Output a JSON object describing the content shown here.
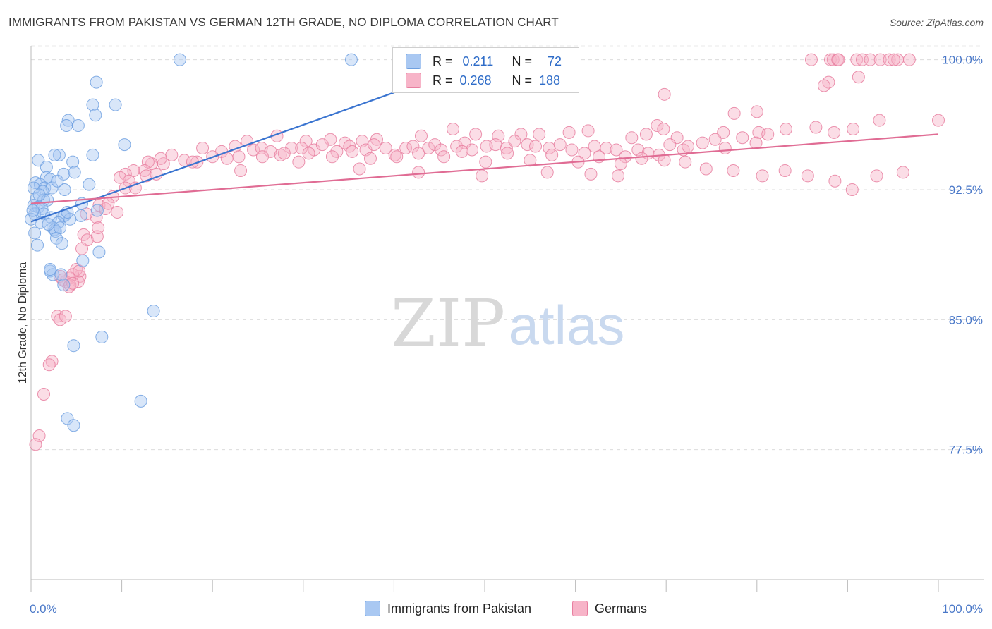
{
  "header": {
    "title": "IMMIGRANTS FROM PAKISTAN VS GERMAN 12TH GRADE, NO DIPLOMA CORRELATION CHART",
    "source": "Source: ZipAtlas.com"
  },
  "watermark": {
    "zip": "ZIP",
    "atlas": "atlas"
  },
  "legend": {
    "rows": [
      {
        "r_label": "R =",
        "r_value": "0.211",
        "n_label": "N =",
        "n_value": "72",
        "color": "#a9c8f2"
      },
      {
        "r_label": "R =",
        "r_value": "0.268",
        "n_label": "N =",
        "n_value": "188",
        "color": "#f7b4c8"
      }
    ]
  },
  "bottom_legend": [
    "Immigrants from Pakistan",
    "Germans"
  ],
  "chart_data": {
    "type": "scatter",
    "title": "IMMIGRANTS FROM PAKISTAN VS GERMAN 12TH GRADE, NO DIPLOMA CORRELATION CHART",
    "xlabel": "",
    "ylabel": "12th Grade, No Diploma",
    "xlim": [
      0,
      100
    ],
    "ylim": [
      70,
      100.8
    ],
    "x_tick_labels": [
      "0.0%",
      "100.0%"
    ],
    "y_ticks": [
      77.5,
      85.0,
      92.5,
      100.0
    ],
    "y_tick_labels": [
      "77.5%",
      "85.0%",
      "92.5%",
      "100.0%"
    ],
    "grid": true,
    "legend_position": "top-center",
    "series": [
      {
        "name": "Immigrants from Pakistan",
        "color": "#6fa0e0",
        "fill": "#a9c8f2",
        "trend": {
          "x": [
            0,
            40.5
          ],
          "y": [
            90.65,
            98.2
          ]
        },
        "points": [
          [
            16.4,
            100.0
          ],
          [
            35.3,
            100.0
          ],
          [
            7.2,
            98.7
          ],
          [
            6.8,
            97.4
          ],
          [
            9.3,
            97.4
          ],
          [
            4.1,
            96.5
          ],
          [
            3.9,
            96.2
          ],
          [
            5.2,
            96.2
          ],
          [
            7.1,
            96.8
          ],
          [
            10.3,
            95.1
          ],
          [
            3.1,
            94.5
          ],
          [
            6.8,
            94.5
          ],
          [
            0.8,
            94.2
          ],
          [
            2.6,
            94.5
          ],
          [
            4.6,
            94.1
          ],
          [
            1.7,
            93.8
          ],
          [
            3.6,
            93.4
          ],
          [
            4.8,
            93.5
          ],
          [
            1.7,
            93.2
          ],
          [
            2.1,
            93.1
          ],
          [
            0.5,
            92.9
          ],
          [
            1.0,
            92.8
          ],
          [
            0.3,
            92.6
          ],
          [
            1.5,
            92.6
          ],
          [
            2.3,
            92.6
          ],
          [
            3.7,
            92.5
          ],
          [
            6.4,
            92.8
          ],
          [
            1.3,
            92.4
          ],
          [
            0.6,
            92.0
          ],
          [
            1.4,
            91.9
          ],
          [
            1.8,
            91.9
          ],
          [
            0.3,
            91.6
          ],
          [
            0.8,
            91.5
          ],
          [
            1.2,
            91.4
          ],
          [
            5.6,
            91.7
          ],
          [
            7.3,
            91.3
          ],
          [
            0.4,
            91.1
          ],
          [
            1.4,
            91.1
          ],
          [
            3.6,
            91.0
          ],
          [
            3.7,
            91.0
          ],
          [
            5.5,
            91.0
          ],
          [
            2.2,
            90.9
          ],
          [
            3.0,
            90.6
          ],
          [
            4.3,
            90.8
          ],
          [
            2.4,
            90.3
          ],
          [
            2.6,
            90.2
          ],
          [
            2.7,
            90.1
          ],
          [
            0.4,
            90.0
          ],
          [
            2.8,
            89.7
          ],
          [
            0.7,
            89.3
          ],
          [
            3.4,
            89.4
          ],
          [
            7.5,
            88.9
          ],
          [
            5.7,
            88.4
          ],
          [
            2.1,
            87.8
          ],
          [
            2.4,
            87.6
          ],
          [
            3.3,
            87.6
          ],
          [
            3.6,
            87.0
          ],
          [
            2.1,
            87.9
          ],
          [
            13.5,
            85.5
          ],
          [
            7.8,
            84.0
          ],
          [
            4.7,
            83.5
          ],
          [
            12.1,
            80.3
          ],
          [
            4.0,
            79.3
          ],
          [
            4.7,
            78.9
          ],
          [
            0.0,
            90.8
          ],
          [
            0.2,
            91.3
          ],
          [
            1.1,
            90.6
          ],
          [
            1.9,
            90.5
          ],
          [
            3.2,
            90.3
          ],
          [
            4.0,
            91.2
          ],
          [
            0.9,
            92.2
          ],
          [
            2.9,
            93.0
          ]
        ]
      },
      {
        "name": "Germans",
        "color": "#e87fa0",
        "fill": "#f7b4c8",
        "trend": {
          "x": [
            0,
            100
          ],
          "y": [
            91.7,
            95.7
          ]
        },
        "points": [
          [
            86.0,
            100.0
          ],
          [
            88.1,
            100.0
          ],
          [
            88.4,
            100.0
          ],
          [
            88.9,
            100.0
          ],
          [
            89.0,
            100.0
          ],
          [
            91.0,
            100.0
          ],
          [
            91.6,
            100.0
          ],
          [
            92.5,
            100.0
          ],
          [
            93.6,
            100.0
          ],
          [
            94.6,
            100.0
          ],
          [
            95.5,
            100.0
          ],
          [
            96.8,
            100.0
          ],
          [
            95.1,
            100.0
          ],
          [
            87.9,
            98.7
          ],
          [
            91.2,
            99.0
          ],
          [
            87.4,
            98.5
          ],
          [
            69.8,
            98.0
          ],
          [
            69.0,
            96.2
          ],
          [
            69.7,
            96.0
          ],
          [
            77.5,
            96.9
          ],
          [
            80.0,
            97.0
          ],
          [
            93.5,
            96.5
          ],
          [
            100.0,
            96.5
          ],
          [
            54.0,
            95.7
          ],
          [
            76.3,
            95.8
          ],
          [
            80.2,
            95.8
          ],
          [
            66.2,
            95.5
          ],
          [
            71.2,
            95.5
          ],
          [
            67.8,
            95.7
          ],
          [
            61.4,
            95.9
          ],
          [
            59.3,
            95.8
          ],
          [
            56.0,
            95.7
          ],
          [
            51.5,
            95.6
          ],
          [
            49.0,
            95.7
          ],
          [
            46.5,
            96.0
          ],
          [
            43.0,
            95.6
          ],
          [
            38.1,
            95.4
          ],
          [
            36.5,
            95.3
          ],
          [
            34.6,
            95.2
          ],
          [
            33.0,
            95.4
          ],
          [
            30.3,
            95.3
          ],
          [
            27.1,
            95.6
          ],
          [
            23.8,
            95.3
          ],
          [
            22.5,
            95.0
          ],
          [
            21.0,
            94.7
          ],
          [
            18.9,
            94.9
          ],
          [
            15.5,
            94.5
          ],
          [
            16.9,
            94.2
          ],
          [
            18.3,
            94.1
          ],
          [
            17.8,
            94.1
          ],
          [
            14.6,
            94.0
          ],
          [
            14.3,
            94.3
          ],
          [
            13.3,
            94.0
          ],
          [
            12.9,
            94.1
          ],
          [
            12.5,
            93.6
          ],
          [
            11.3,
            93.6
          ],
          [
            10.4,
            93.4
          ],
          [
            9.8,
            93.2
          ],
          [
            10.8,
            93.0
          ],
          [
            10.4,
            92.6
          ],
          [
            12.7,
            93.3
          ],
          [
            13.8,
            93.4
          ],
          [
            11.5,
            92.6
          ],
          [
            9.0,
            92.1
          ],
          [
            7.5,
            91.6
          ],
          [
            8.2,
            91.4
          ],
          [
            8.5,
            91.7
          ],
          [
            9.5,
            91.2
          ],
          [
            7.2,
            90.9
          ],
          [
            6.1,
            91.1
          ],
          [
            5.8,
            89.9
          ],
          [
            6.2,
            89.6
          ],
          [
            7.3,
            89.8
          ],
          [
            7.4,
            90.3
          ],
          [
            5.6,
            89.1
          ],
          [
            5.4,
            87.5
          ],
          [
            5.2,
            87.2
          ],
          [
            5.0,
            87.9
          ],
          [
            4.3,
            87.4
          ],
          [
            3.8,
            87.2
          ],
          [
            3.2,
            87.5
          ],
          [
            4.2,
            86.9
          ],
          [
            4.6,
            87.6
          ],
          [
            3.5,
            87.3
          ],
          [
            4.3,
            87.0
          ],
          [
            4.6,
            87.1
          ],
          [
            5.3,
            87.8
          ],
          [
            2.9,
            85.2
          ],
          [
            3.2,
            85.0
          ],
          [
            3.8,
            85.2
          ],
          [
            2.3,
            82.6
          ],
          [
            2.0,
            82.4
          ],
          [
            1.4,
            80.7
          ],
          [
            0.9,
            78.3
          ],
          [
            0.5,
            77.8
          ],
          [
            20.0,
            94.4
          ],
          [
            21.6,
            94.3
          ],
          [
            22.9,
            94.4
          ],
          [
            24.5,
            94.8
          ],
          [
            25.4,
            94.9
          ],
          [
            26.4,
            94.7
          ],
          [
            27.5,
            94.5
          ],
          [
            28.7,
            94.9
          ],
          [
            29.8,
            94.9
          ],
          [
            31.2,
            94.8
          ],
          [
            32.1,
            95.1
          ],
          [
            33.7,
            94.7
          ],
          [
            35.1,
            95.0
          ],
          [
            36.9,
            94.8
          ],
          [
            37.8,
            95.1
          ],
          [
            39.1,
            94.9
          ],
          [
            40.1,
            94.5
          ],
          [
            41.3,
            94.9
          ],
          [
            42.1,
            95.0
          ],
          [
            43.8,
            94.9
          ],
          [
            44.5,
            95.1
          ],
          [
            45.2,
            94.8
          ],
          [
            46.9,
            95.0
          ],
          [
            47.8,
            95.2
          ],
          [
            48.6,
            94.8
          ],
          [
            50.2,
            95.0
          ],
          [
            51.2,
            95.1
          ],
          [
            52.4,
            94.9
          ],
          [
            53.3,
            95.3
          ],
          [
            54.7,
            95.1
          ],
          [
            55.6,
            95.0
          ],
          [
            57.1,
            94.9
          ],
          [
            58.3,
            95.1
          ],
          [
            59.6,
            94.8
          ],
          [
            61.0,
            94.6
          ],
          [
            62.1,
            95.0
          ],
          [
            63.4,
            94.9
          ],
          [
            64.5,
            94.8
          ],
          [
            65.5,
            94.4
          ],
          [
            66.9,
            94.8
          ],
          [
            68.0,
            94.6
          ],
          [
            69.2,
            94.5
          ],
          [
            70.4,
            95.1
          ],
          [
            71.9,
            94.8
          ],
          [
            72.4,
            95.0
          ],
          [
            74.0,
            95.2
          ],
          [
            75.4,
            95.4
          ],
          [
            76.5,
            94.9
          ],
          [
            78.4,
            95.5
          ],
          [
            79.9,
            95.2
          ],
          [
            81.2,
            95.7
          ],
          [
            83.2,
            96.0
          ],
          [
            86.5,
            96.1
          ],
          [
            88.5,
            95.8
          ],
          [
            90.6,
            96.0
          ],
          [
            23.1,
            93.6
          ],
          [
            25.5,
            94.4
          ],
          [
            27.9,
            94.6
          ],
          [
            30.6,
            94.6
          ],
          [
            33.2,
            94.4
          ],
          [
            35.4,
            94.7
          ],
          [
            37.4,
            94.3
          ],
          [
            40.3,
            94.4
          ],
          [
            42.7,
            94.6
          ],
          [
            45.5,
            94.4
          ],
          [
            47.5,
            94.7
          ],
          [
            50.1,
            94.1
          ],
          [
            52.5,
            94.6
          ],
          [
            55.0,
            94.2
          ],
          [
            57.4,
            94.5
          ],
          [
            60.3,
            94.1
          ],
          [
            62.6,
            94.4
          ],
          [
            65.0,
            94.0
          ],
          [
            67.3,
            94.3
          ],
          [
            69.8,
            94.2
          ],
          [
            72.1,
            94.1
          ],
          [
            74.4,
            93.7
          ],
          [
            77.4,
            93.6
          ],
          [
            80.6,
            93.3
          ],
          [
            83.1,
            93.6
          ],
          [
            85.6,
            93.3
          ],
          [
            88.6,
            93.0
          ],
          [
            90.5,
            92.5
          ],
          [
            93.2,
            93.3
          ],
          [
            96.1,
            93.5
          ],
          [
            64.7,
            93.3
          ],
          [
            61.7,
            93.4
          ],
          [
            56.9,
            93.5
          ],
          [
            49.7,
            93.3
          ],
          [
            42.7,
            93.5
          ],
          [
            36.2,
            93.7
          ],
          [
            29.5,
            94.1
          ]
        ]
      }
    ]
  }
}
